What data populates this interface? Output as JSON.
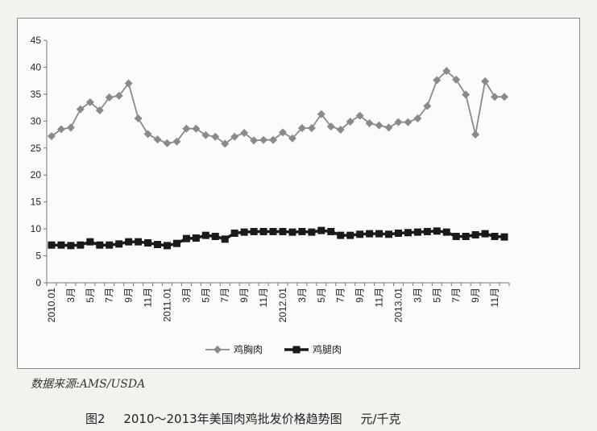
{
  "source": "数据来源:AMS/USDA",
  "caption": {
    "number": "图2",
    "text": "2010～2013年美国肉鸡批发价格趋势图",
    "unit": "元/千克"
  },
  "chart_data": {
    "type": "line",
    "ylim": [
      0,
      45
    ],
    "yticks": [
      0,
      5,
      10,
      15,
      20,
      25,
      30,
      35,
      40,
      45
    ],
    "months_count": 48,
    "x_labels": [
      "2010.01",
      "",
      "3月",
      "",
      "5月",
      "",
      "7月",
      "",
      "9月",
      "",
      "11月",
      "",
      "2011.01",
      "",
      "3月",
      "",
      "5月",
      "",
      "7月",
      "",
      "9月",
      "",
      "11月",
      "",
      "2012.01",
      "",
      "3月",
      "",
      "5月",
      "",
      "7月",
      "",
      "9月",
      "",
      "11月",
      "",
      "2013.01",
      "",
      "3月",
      "",
      "5月",
      "",
      "7月",
      "",
      "9月",
      "",
      "11月",
      ""
    ],
    "grid": false,
    "legend_position": "bottom",
    "series": [
      {
        "name": "鸡胸肉",
        "color": "#8a8a8a",
        "marker": "diamond",
        "values": [
          27.2,
          28.5,
          28.8,
          32.2,
          33.5,
          32.0,
          34.4,
          34.7,
          37.0,
          30.5,
          27.6,
          26.6,
          25.9,
          26.2,
          28.6,
          28.6,
          27.4,
          27.1,
          25.8,
          27.1,
          27.8,
          26.4,
          26.5,
          26.5,
          27.9,
          26.8,
          28.7,
          28.7,
          31.3,
          29.0,
          28.4,
          29.9,
          31.0,
          29.6,
          29.2,
          28.8,
          29.8,
          29.8,
          30.5,
          32.8,
          37.6,
          39.3,
          37.7,
          34.9,
          27.5,
          37.4,
          34.5,
          34.5
        ]
      },
      {
        "name": "鸡腿肉",
        "color": "#1a1a1a",
        "marker": "square",
        "values": [
          7.0,
          7.0,
          6.9,
          7.0,
          7.6,
          7.0,
          7.0,
          7.2,
          7.6,
          7.6,
          7.4,
          7.1,
          6.9,
          7.3,
          8.2,
          8.3,
          8.8,
          8.6,
          8.1,
          9.2,
          9.4,
          9.5,
          9.5,
          9.5,
          9.5,
          9.4,
          9.5,
          9.4,
          9.7,
          9.5,
          8.8,
          8.8,
          9.0,
          9.1,
          9.1,
          9.0,
          9.2,
          9.3,
          9.4,
          9.5,
          9.6,
          9.4,
          8.6,
          8.6,
          8.9,
          9.1,
          8.6,
          8.5
        ]
      }
    ]
  }
}
